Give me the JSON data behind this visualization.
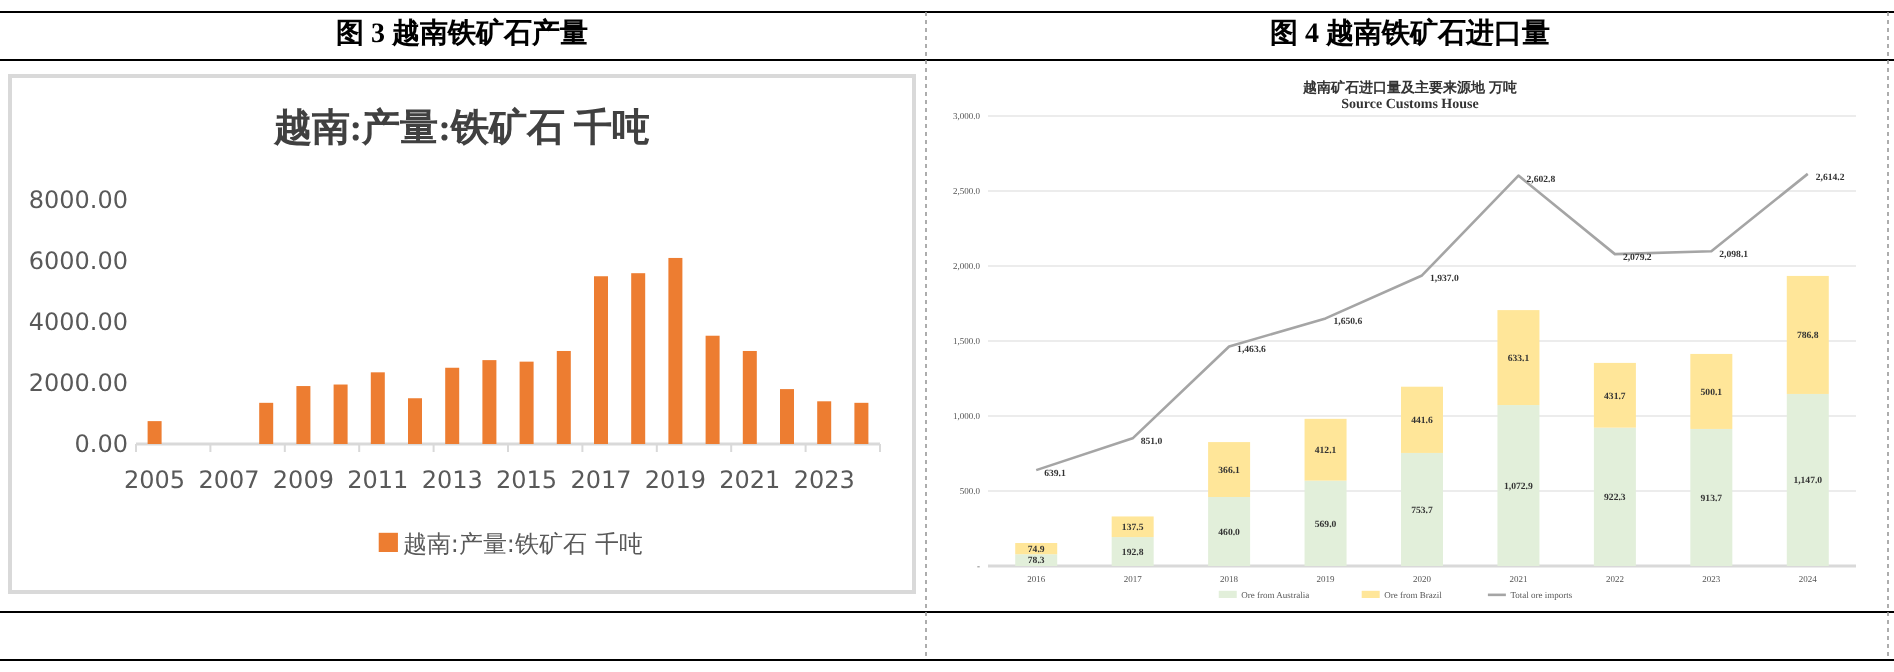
{
  "chart_data": [
    {
      "type": "bar",
      "title": "图 3 越南铁矿石产量",
      "subtitle": "越南:产量:铁矿石 千吨",
      "categories": [
        "2005",
        null,
        "2007",
        null,
        "2009",
        null,
        "2011",
        null,
        "2013",
        null,
        "2015",
        null,
        "2017",
        null,
        "2019",
        null,
        "2021",
        null,
        "2023",
        null
      ],
      "series": [
        {
          "name": "越南:产量:铁矿石 千吨",
          "color": "#ed7d31",
          "values": [
            750,
            null,
            null,
            1350,
            1900,
            1950,
            2350,
            1500,
            2500,
            2750,
            2700,
            3050,
            5500,
            5600,
            6100,
            3550,
            3050,
            1800,
            1400,
            1350
          ]
        }
      ],
      "ylim": [
        0,
        8000
      ],
      "yticks": [
        {
          "value": 0,
          "label": "0.00"
        },
        {
          "value": 2000,
          "label": "2000.00"
        },
        {
          "value": 4000,
          "label": "4000.00"
        },
        {
          "value": 6000,
          "label": "6000.00"
        },
        {
          "value": 8000,
          "label": "8000.00"
        }
      ],
      "legend": "bottom",
      "grid": false
    },
    {
      "type": "bar",
      "title": "图 4 越南铁矿石进口量",
      "subtitle": "越南矿石进口量及主要来源地 万吨",
      "annotations": [
        "Source Customs House"
      ],
      "categories": [
        "2016",
        "2017",
        "2018",
        "2019",
        "2020",
        "2021",
        "2022",
        "2023",
        "2024"
      ],
      "stacked": true,
      "series": [
        {
          "name": "Ore from Australia",
          "color": "#e2efda",
          "values": [
            78.3,
            192.8,
            460,
            569,
            753.7,
            1072.9,
            922.3,
            913.7,
            1147
          ],
          "value_labels": [
            "78.3",
            "192.8",
            "460.0",
            "569.0",
            "753.7",
            "1,072.9",
            "922.3",
            "913.7",
            "1,147.0"
          ]
        },
        {
          "name": "Ore from Brazil",
          "color": "#ffe699",
          "values": [
            74.9,
            137.5,
            366.1,
            412.1,
            441.6,
            633.1,
            431.7,
            500.1,
            786.8
          ],
          "value_labels": [
            "74.9",
            "137.5",
            "366.1",
            "412.1",
            "441.6",
            "633.1",
            "431.7",
            "500.1",
            "786.8"
          ]
        },
        {
          "name": "Total ore imports",
          "type": "line",
          "color": "#a5a5a5",
          "values": [
            639.1,
            851,
            1463.6,
            1650.6,
            1937,
            2602.8,
            2079.2,
            2098.1,
            2614.2
          ],
          "value_labels": [
            "639.1",
            "851.0",
            "1,463.6",
            "1,650.6",
            "1,937.0",
            "2,602.8",
            "2,079.2",
            "2,098.1",
            "2,614.2"
          ]
        }
      ],
      "ylim": [
        0,
        3000
      ],
      "yticks": [
        {
          "value": 0,
          "label": "-"
        },
        {
          "value": 500,
          "label": "500.0"
        },
        {
          "value": 1000,
          "label": "1,000.0"
        },
        {
          "value": 1500,
          "label": "1,500.0"
        },
        {
          "value": 2000,
          "label": "2,000.0"
        },
        {
          "value": 2500,
          "label": "2,500.0"
        },
        {
          "value": 3000,
          "label": "3,000.0"
        }
      ],
      "legend": "bottom",
      "grid": "y"
    }
  ]
}
